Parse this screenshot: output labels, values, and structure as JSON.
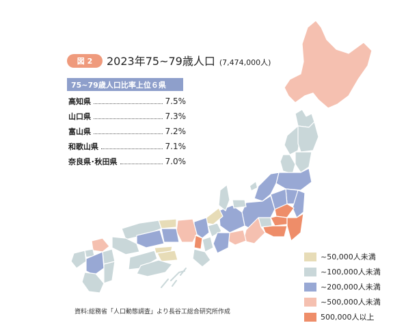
{
  "figure": {
    "badge": "図 2",
    "title": "2023年75~79歳人口",
    "total": "(7,474,000人)"
  },
  "ranking": {
    "header": "75~79歳人口比率上位６県",
    "items": [
      {
        "name": "高知県",
        "value": "7.5%"
      },
      {
        "name": "山口県",
        "value": "7.3%"
      },
      {
        "name": "富山県",
        "value": "7.2%"
      },
      {
        "name": "和歌山県",
        "value": "7.1%"
      },
      {
        "name": "奈良県･秋田県",
        "value": "7.0%"
      }
    ]
  },
  "legend": [
    {
      "label": "~50,000人未満",
      "color": "#e7dcb7"
    },
    {
      "label": "~100,000人未満",
      "color": "#c9d7d9"
    },
    {
      "label": "~200,000人未満",
      "color": "#98a8d4"
    },
    {
      "label": "~500,000人未満",
      "color": "#f5c0b0"
    },
    {
      "label": "500,000人以上",
      "color": "#ee8d69"
    }
  ],
  "source": "資料:総務省「人口動態調査」より長谷工総合研究所作成"
}
